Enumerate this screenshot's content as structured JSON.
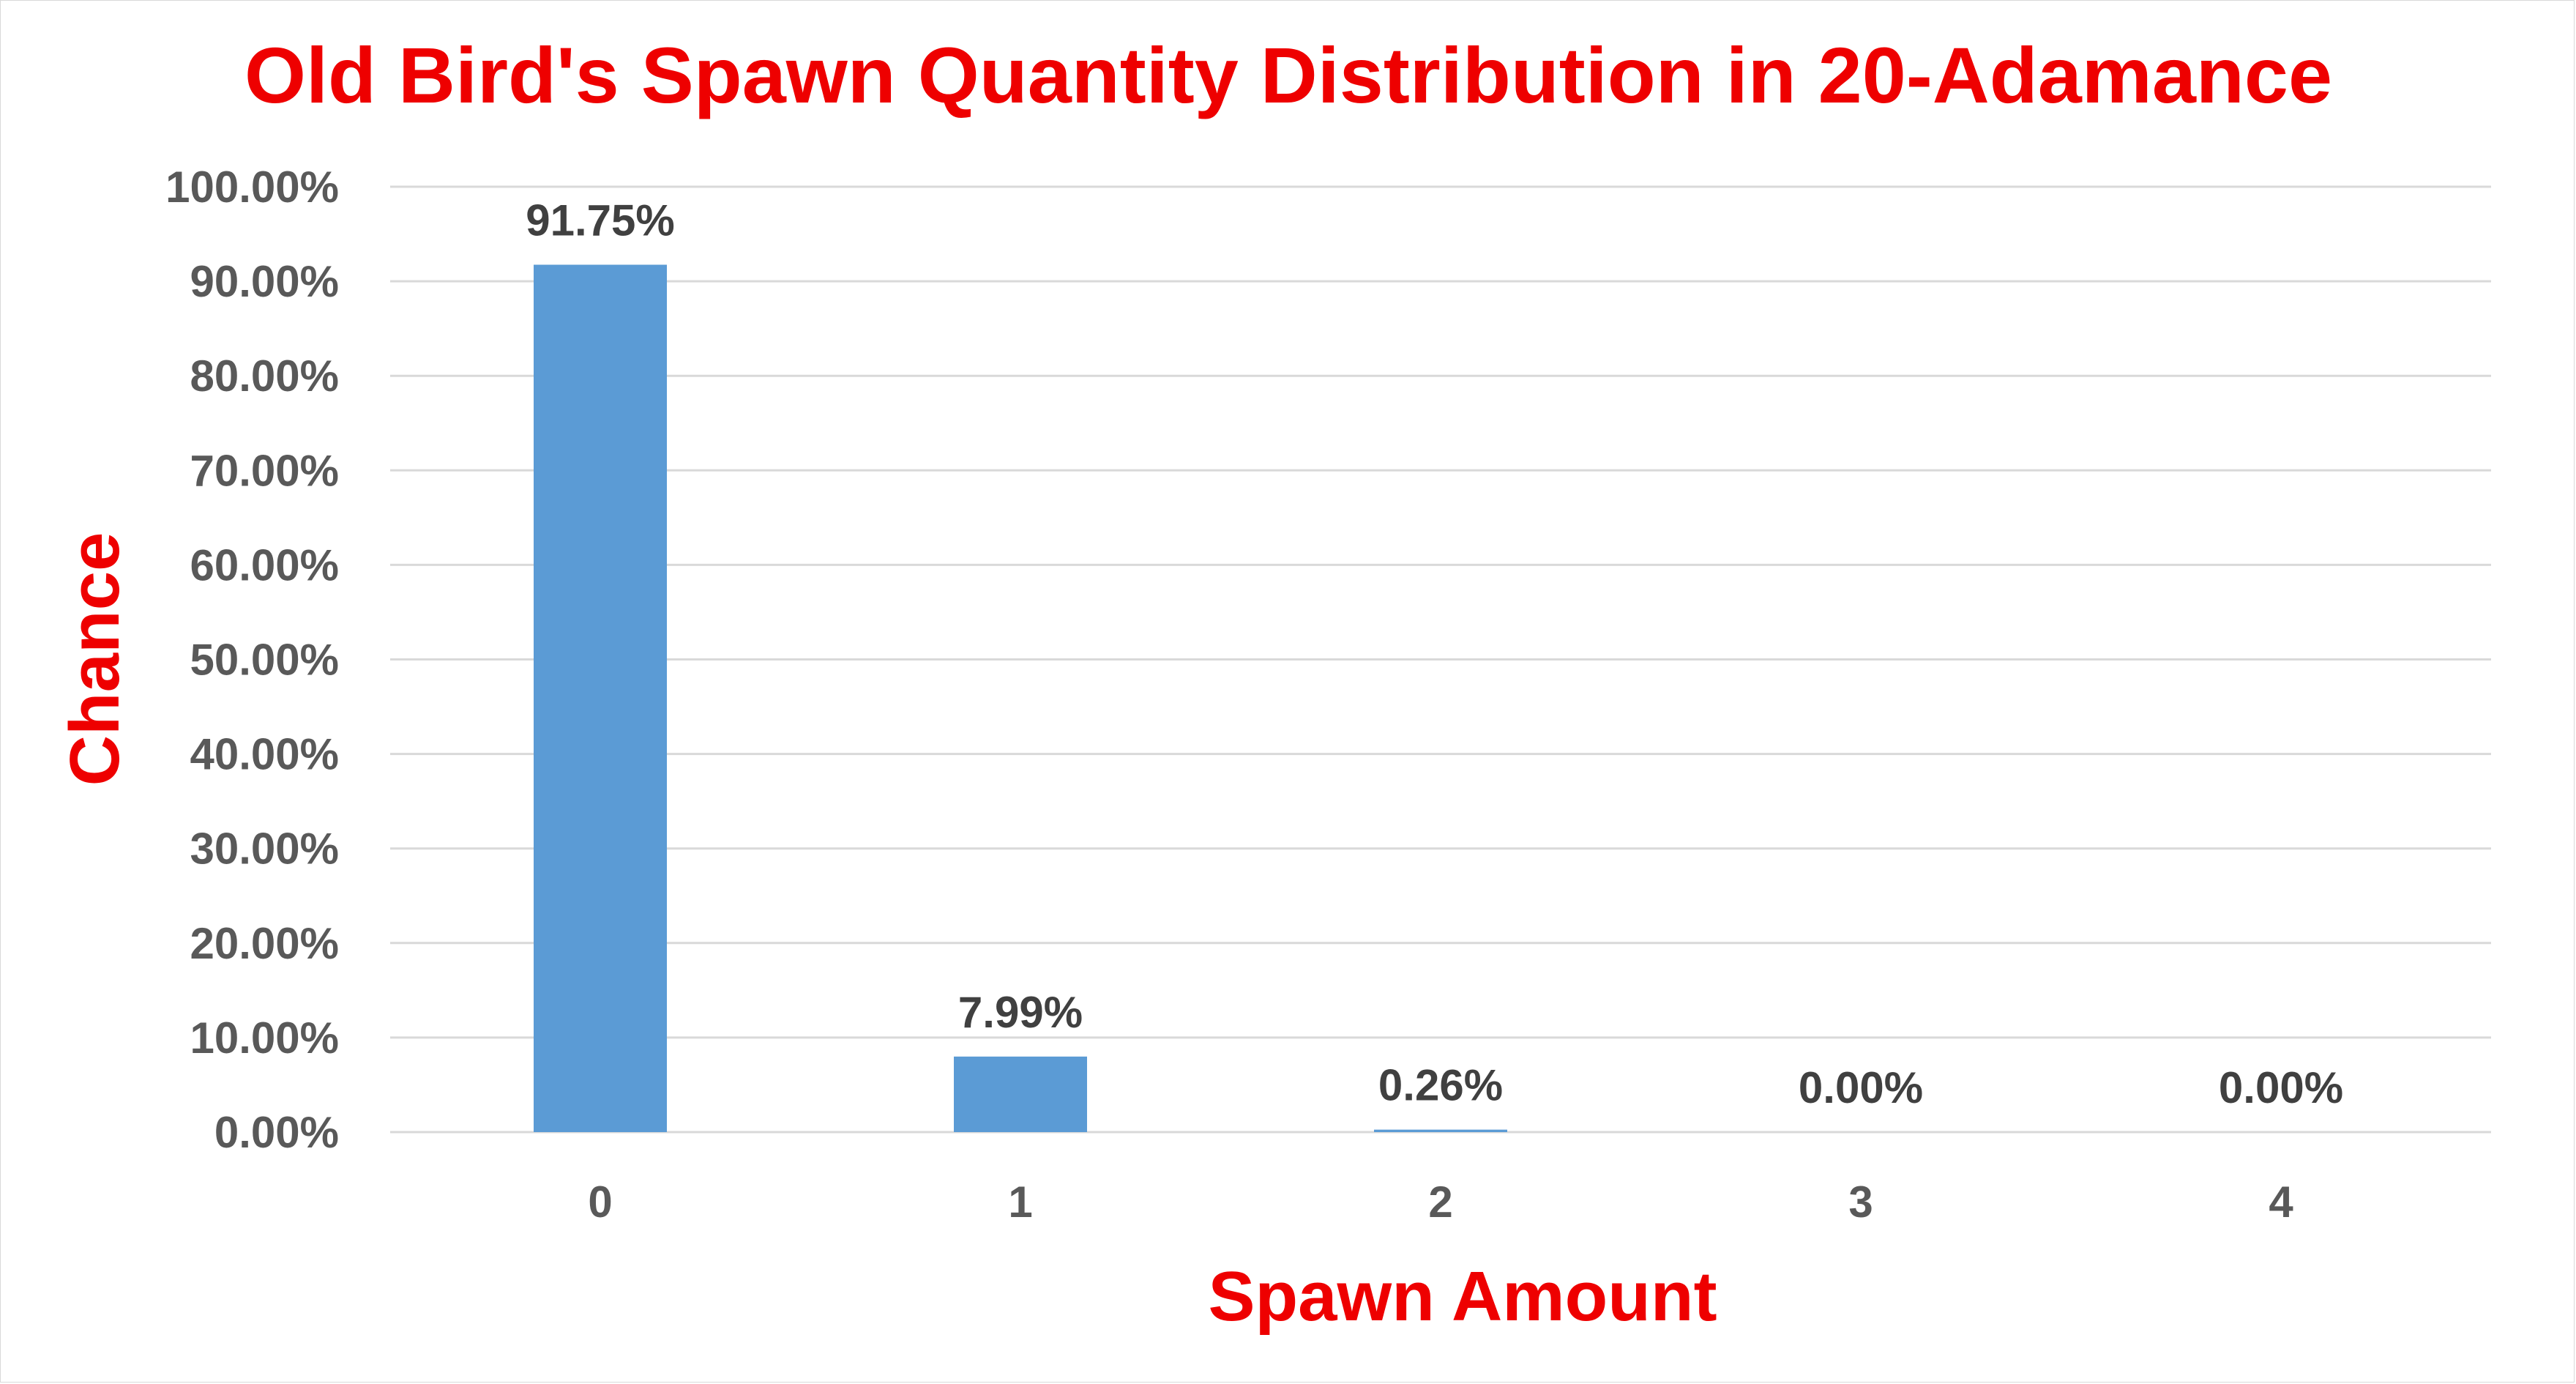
{
  "colors": {
    "title": "#ee0000",
    "axis_title": "#ee0000",
    "bar": "#5b9bd5",
    "gridline": "#d9d9d9",
    "tick_label": "#595959",
    "data_label": "#404040"
  },
  "chart_data": {
    "type": "bar",
    "title": "Old Bird's Spawn Quantity Distribution in 20-Adamance",
    "xlabel": "Spawn Amount",
    "ylabel": "Chance",
    "categories": [
      "0",
      "1",
      "2",
      "3",
      "4"
    ],
    "values": [
      91.75,
      7.99,
      0.26,
      0.0,
      0.0
    ],
    "data_labels": [
      "91.75%",
      "7.99%",
      "0.26%",
      "0.00%",
      "0.00%"
    ],
    "ylim": [
      0,
      100
    ],
    "yticks": [
      0,
      10,
      20,
      30,
      40,
      50,
      60,
      70,
      80,
      90,
      100
    ],
    "ytick_labels": [
      "0.00%",
      "10.00%",
      "20.00%",
      "30.00%",
      "40.00%",
      "50.00%",
      "60.00%",
      "70.00%",
      "80.00%",
      "90.00%",
      "100.00%"
    ],
    "grid": true,
    "legend": "none"
  }
}
